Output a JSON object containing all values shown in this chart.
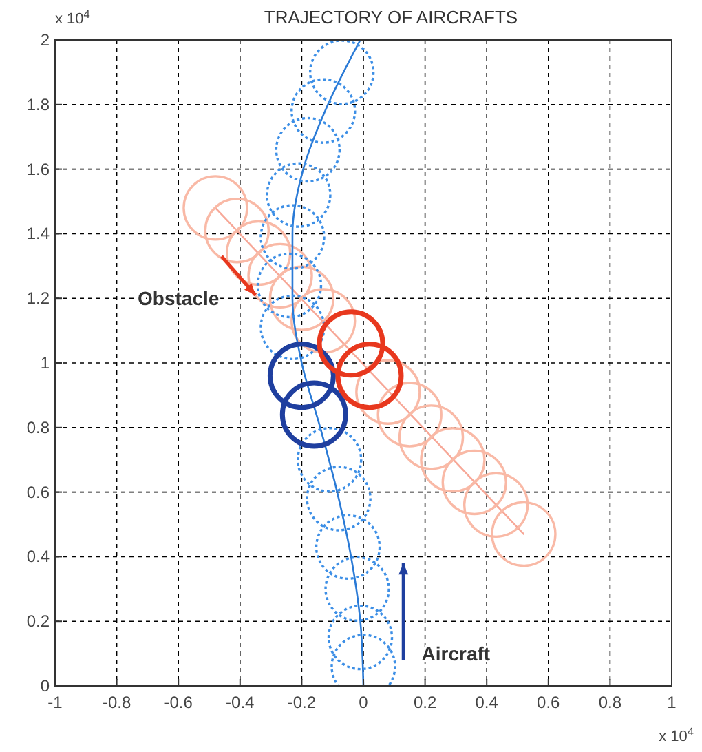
{
  "chart_data": {
    "type": "line",
    "title": "TRAJECTORY OF AIRCRAFTS",
    "xlim": [
      -1,
      1
    ],
    "ylim": [
      0,
      2
    ],
    "xticks": [
      -1,
      -0.8,
      -0.6,
      -0.4,
      -0.2,
      0,
      0.2,
      0.4,
      0.6,
      0.8,
      1
    ],
    "yticks": [
      0,
      0.2,
      0.4,
      0.6,
      0.8,
      1,
      1.2,
      1.4,
      1.6,
      1.8,
      2
    ],
    "grid": true,
    "series": [
      {
        "color": "#f7a898",
        "x": [
          -0.48,
          0.52
        ],
        "values": [
          1.48,
          0.47
        ]
      },
      {
        "type": "scatter",
        "marker": "circle",
        "color": "#f9b9a6",
        "x": [
          -0.48,
          -0.41,
          -0.34,
          -0.27,
          -0.2,
          -0.13,
          0.08,
          0.15,
          0.22,
          0.29,
          0.36,
          0.43,
          0.52
        ],
        "values": [
          1.48,
          1.41,
          1.34,
          1.27,
          1.2,
          1.13,
          0.91,
          0.84,
          0.77,
          0.7,
          0.63,
          0.56,
          0.47
        ]
      },
      {
        "color": "#2a7ad6",
        "x": [
          0,
          -0.01,
          -0.04,
          -0.085,
          -0.14,
          -0.2,
          -0.23,
          -0.23,
          -0.195,
          -0.115,
          -0.01
        ],
        "values": [
          0,
          0.2,
          0.4,
          0.6,
          0.8,
          1,
          1.2,
          1.4,
          1.6,
          1.8,
          2
        ]
      },
      {
        "type": "scatter",
        "marker": "circle",
        "line_style": "dotted",
        "color": "#3d8fe6",
        "x": [
          0,
          -0.01,
          -0.02,
          -0.05,
          -0.08,
          -0.11,
          -0.23,
          -0.24,
          -0.23,
          -0.21,
          -0.18,
          -0.13,
          -0.07
        ],
        "values": [
          0.06,
          0.15,
          0.3,
          0.43,
          0.58,
          0.7,
          1.11,
          1.24,
          1.39,
          1.52,
          1.66,
          1.78,
          1.9
        ]
      },
      {
        "type": "scatter",
        "marker": "circle",
        "color": "#1f3f9f",
        "x": [
          -0.16,
          -0.2
        ],
        "values": [
          0.84,
          0.96
        ]
      },
      {
        "type": "scatter",
        "marker": "circle",
        "color": "#e8381e",
        "x": [
          -0.04,
          0.02
        ],
        "values": [
          1.06,
          0.96
        ]
      }
    ],
    "annotations": [
      "x 10$^{4}$",
      "x 10$^{4}$",
      "Obstacle",
      "Aircraft"
    ]
  }
}
